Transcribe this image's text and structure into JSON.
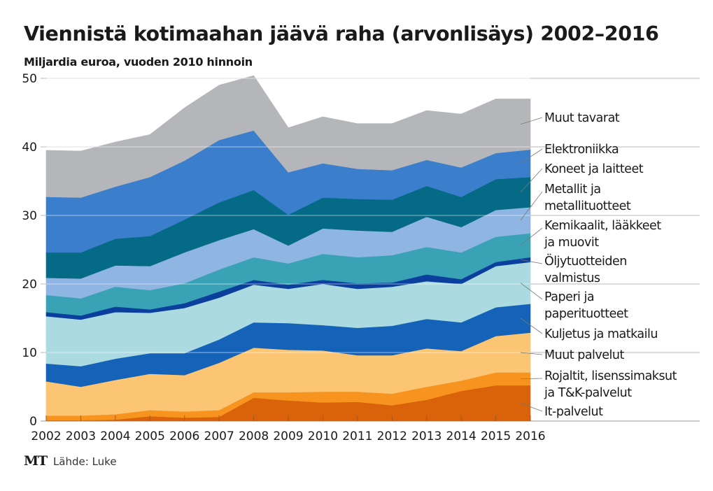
{
  "chart_data": {
    "type": "area",
    "stacked": true,
    "title": "Viennistä kotimaahan jäävä raha (arvonlisäys) 2002–2016",
    "subtitle": "Miljardia euroa, vuoden 2010 hinnoin",
    "xlabel": "",
    "ylabel": "",
    "ylim": [
      0,
      50
    ],
    "yticks": [
      0,
      10,
      20,
      30,
      40,
      50
    ],
    "grid": true,
    "legend_position": "right",
    "categories": [
      "2002",
      "2003",
      "2004",
      "2005",
      "2006",
      "2007",
      "2008",
      "2009",
      "2010",
      "2011",
      "2012",
      "2013",
      "2014",
      "2015",
      "2016"
    ],
    "series": [
      {
        "name": "It-palvelut",
        "label_lines": [
          "It-palvelut"
        ],
        "color": "#d9620a",
        "values": [
          0.1,
          0.1,
          0.2,
          0.7,
          0.5,
          0.6,
          3.4,
          3.0,
          2.7,
          2.8,
          2.3,
          3.1,
          4.4,
          5.2,
          5.2
        ]
      },
      {
        "name": "Rojaltit, lisenssimaksut ja T&K-palvelut",
        "label_lines": [
          "Rojaltit, lisenssimaksut",
          "ja T&K-palvelut"
        ],
        "color": "#f7941f",
        "values": [
          0.7,
          0.7,
          0.8,
          0.9,
          0.9,
          1.0,
          0.8,
          1.2,
          1.6,
          1.5,
          1.7,
          1.9,
          1.5,
          1.9,
          1.9
        ]
      },
      {
        "name": "Muut palvelut",
        "label_lines": [
          "Muut palvelut"
        ],
        "color": "#fcc573",
        "values": [
          5.0,
          4.2,
          5.0,
          5.3,
          5.3,
          6.9,
          6.5,
          6.2,
          6.0,
          5.3,
          5.6,
          5.6,
          4.3,
          5.3,
          5.8
        ]
      },
      {
        "name": "Kuljetus ja matkailu",
        "label_lines": [
          "Kuljetus ja matkailu"
        ],
        "color": "#1563b8",
        "values": [
          2.6,
          3.0,
          3.1,
          3.0,
          3.2,
          3.4,
          3.7,
          3.9,
          3.7,
          4.0,
          4.3,
          4.3,
          4.2,
          4.2,
          4.2
        ]
      },
      {
        "name": "Paperi ja paperituotteet",
        "label_lines": [
          "Paperi ja",
          "paperituotteet"
        ],
        "color": "#abdae0",
        "values": [
          6.9,
          6.8,
          6.8,
          5.9,
          6.6,
          6.1,
          5.5,
          5.0,
          6.0,
          5.7,
          5.7,
          5.5,
          5.6,
          6.0,
          6.1
        ]
      },
      {
        "name": "Öljytuotteiden valmistus",
        "label_lines": [
          "Öljytuotteiden",
          "valmistus"
        ],
        "color": "#0a3f9e",
        "values": [
          0.6,
          0.6,
          0.8,
          0.5,
          0.7,
          0.9,
          0.7,
          0.6,
          0.6,
          0.8,
          0.6,
          1.0,
          0.7,
          0.6,
          0.7
        ]
      },
      {
        "name": "Kemikaalit, lääkkeet ja muovit",
        "label_lines": [
          "Kemikaalit, lääkkeet",
          "ja muovit"
        ],
        "color": "#39a2b5",
        "values": [
          2.5,
          2.5,
          2.9,
          2.8,
          2.9,
          3.2,
          3.3,
          3.1,
          3.8,
          3.8,
          4.0,
          4.0,
          3.9,
          3.7,
          3.5
        ]
      },
      {
        "name": "Metallit ja metallituotteet",
        "label_lines": [
          "Metallit ja",
          "metallituotteet"
        ],
        "color": "#8fb5e2",
        "values": [
          2.5,
          2.9,
          3.1,
          3.5,
          4.5,
          4.3,
          4.1,
          2.6,
          3.7,
          3.9,
          3.4,
          4.4,
          3.7,
          3.9,
          3.8
        ]
      },
      {
        "name": "Koneet ja laitteet",
        "label_lines": [
          "Koneet ja laitteet"
        ],
        "color": "#046a85",
        "values": [
          3.7,
          3.8,
          3.9,
          4.4,
          4.8,
          5.5,
          5.7,
          4.5,
          4.5,
          4.6,
          4.7,
          4.5,
          4.4,
          4.5,
          4.4
        ]
      },
      {
        "name": "Elektroniikka",
        "label_lines": [
          "Elektroniikka"
        ],
        "color": "#3b7ecb",
        "values": [
          8.1,
          8.0,
          7.6,
          8.6,
          8.6,
          9.1,
          8.7,
          6.2,
          5.0,
          4.4,
          4.3,
          3.8,
          4.3,
          3.8,
          4.0
        ]
      },
      {
        "name": "Muut tavarat",
        "label_lines": [
          "Muut tavarat"
        ],
        "color": "#b5b6b9",
        "values": [
          6.8,
          6.8,
          6.5,
          6.2,
          7.7,
          8.0,
          8.0,
          6.5,
          6.8,
          6.6,
          6.8,
          7.2,
          7.8,
          7.9,
          7.4
        ]
      }
    ]
  },
  "footer": {
    "logo": "MT",
    "source": "Lähde: Luke"
  }
}
